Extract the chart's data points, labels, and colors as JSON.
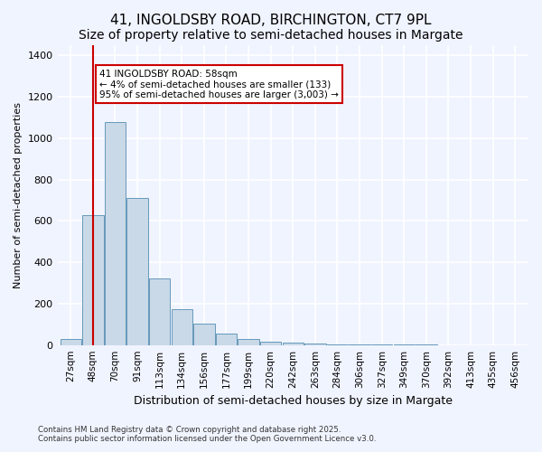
{
  "title1": "41, INGOLDSBY ROAD, BIRCHINGTON, CT7 9PL",
  "title2": "Size of property relative to semi-detached houses in Margate",
  "xlabel": "Distribution of semi-detached houses by size in Margate",
  "ylabel": "Number of semi-detached properties",
  "annotation_title": "41 INGOLDSBY ROAD: 58sqm",
  "annotation_line1": "← 4% of semi-detached houses are smaller (133)",
  "annotation_line2": "95% of semi-detached houses are larger (3,003) →",
  "footer1": "Contains HM Land Registry data © Crown copyright and database right 2025.",
  "footer2": "Contains public sector information licensed under the Open Government Licence v3.0.",
  "categories": [
    "27sqm",
    "48sqm",
    "70sqm",
    "91sqm",
    "113sqm",
    "134sqm",
    "156sqm",
    "177sqm",
    "199sqm",
    "220sqm",
    "242sqm",
    "263sqm",
    "284sqm",
    "306sqm",
    "327sqm",
    "349sqm",
    "370sqm",
    "392sqm",
    "413sqm",
    "435sqm",
    "456sqm"
  ],
  "values": [
    30,
    630,
    1080,
    710,
    320,
    175,
    105,
    55,
    30,
    18,
    10,
    8,
    5,
    3,
    2,
    1,
    1,
    0,
    0,
    0,
    0
  ],
  "bar_color": "#c9d9e8",
  "bar_edge_color": "#6699bb",
  "vline_x": 1,
  "vline_color": "#cc0000",
  "annotation_box_color": "#cc0000",
  "ylim": [
    0,
    1450
  ],
  "yticks": [
    0,
    200,
    400,
    600,
    800,
    1000,
    1200,
    1400
  ],
  "background_color": "#f0f4ff",
  "grid_color": "#ffffff",
  "title_fontsize": 11,
  "subtitle_fontsize": 10
}
